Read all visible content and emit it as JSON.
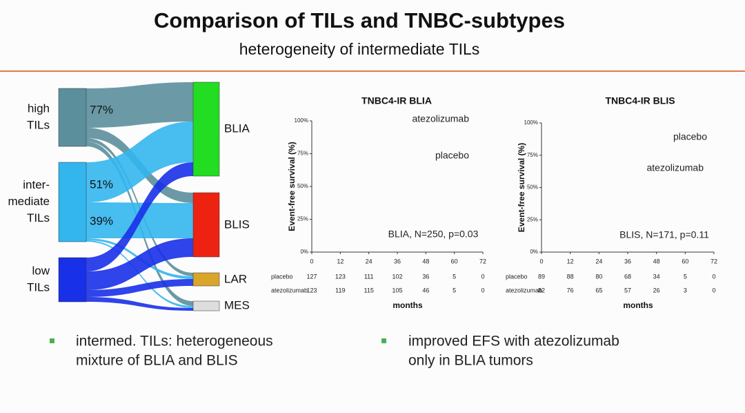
{
  "header": {
    "title": "Comparison of TILs and TNBC-subtypes",
    "subtitle": "heterogeneity of intermediate TILs"
  },
  "sankey": {
    "sources": [
      {
        "lines": [
          "high",
          "TILs"
        ],
        "percents": [
          "77%"
        ]
      },
      {
        "lines": [
          "inter-",
          "mediate",
          "TILs"
        ],
        "percents": [
          "51%",
          "39%"
        ]
      },
      {
        "lines": [
          "low",
          "TILs"
        ],
        "percents": []
      }
    ],
    "targets": [
      "BLIA",
      "BLIS",
      "LAR",
      "MES"
    ]
  },
  "plots": [
    {
      "title": "TNBC4-IR BLIA",
      "ylabel": "Event-free survival (%)",
      "yticks": [
        "100%",
        "75%",
        "50%",
        "25%",
        "0%"
      ],
      "xticks": [
        "0",
        "12",
        "24",
        "36",
        "48",
        "60",
        "72"
      ],
      "xlabel": "months",
      "curve_labels": [
        "atezolizumab",
        "placebo"
      ],
      "note": "BLIA, N=250, p=0.03",
      "risk_table": [
        {
          "name": "placebo",
          "values": [
            "127",
            "123",
            "111",
            "102",
            "36",
            "5",
            "0"
          ]
        },
        {
          "name": "atezolizumab",
          "values": [
            "123",
            "119",
            "115",
            "105",
            "46",
            "5",
            "0"
          ]
        }
      ]
    },
    {
      "title": "TNBC4-IR BLIS",
      "ylabel": "Event-free survival (%)",
      "yticks": [
        "100%",
        "75%",
        "50%",
        "25%",
        "0%"
      ],
      "xticks": [
        "0",
        "12",
        "24",
        "36",
        "48",
        "60",
        "72"
      ],
      "xlabel": "months",
      "curve_labels": [
        "placebo",
        "atezolizumab"
      ],
      "note": "BLIS, N=171, p=0.11",
      "risk_table": [
        {
          "name": "placebo",
          "values": [
            "89",
            "88",
            "80",
            "68",
            "34",
            "5",
            "0"
          ]
        },
        {
          "name": "atezolizumab",
          "values": [
            "82",
            "76",
            "65",
            "57",
            "26",
            "3",
            "0"
          ]
        }
      ]
    }
  ],
  "bullets": [
    [
      "intermed. TILs: heterogeneous",
      "mixture of BLIA and BLIS"
    ],
    [
      "improved EFS with atezolizumab",
      "only in BLIA tumors"
    ]
  ]
}
